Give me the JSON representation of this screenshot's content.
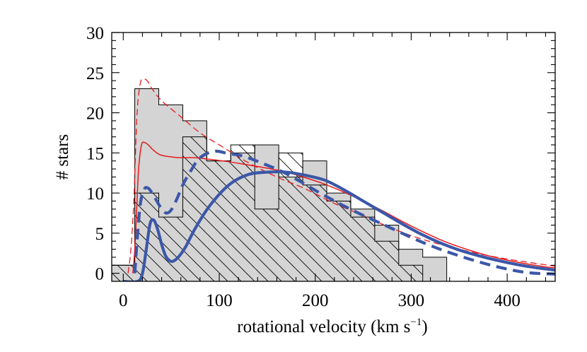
{
  "chart_data": {
    "type": "bar",
    "xlabel_main": "rotational velocity (km s",
    "xlabel_sup": "−1",
    "xlabel_close": ")",
    "ylabel": "# stars",
    "xlim": [
      -12,
      450
    ],
    "ylim": [
      -1,
      30
    ],
    "xticks": [
      0,
      100,
      200,
      300,
      400
    ],
    "yticks": [
      0,
      5,
      10,
      15,
      20,
      25,
      30
    ],
    "grid": false,
    "histogram_shaded": {
      "name": "",
      "bin_edges": [
        -12,
        12,
        37,
        62,
        87,
        112,
        137,
        162,
        187,
        212,
        237,
        262,
        287,
        312,
        337
      ],
      "counts": [
        1,
        23,
        21,
        19,
        14,
        15,
        16,
        12,
        14,
        10,
        8,
        6,
        3,
        2
      ]
    },
    "histogram_hatched": {
      "name": "",
      "bin_edges": [
        -12,
        12,
        37,
        62,
        87,
        112,
        137,
        162,
        187,
        212,
        237,
        262,
        287,
        312,
        337
      ],
      "counts": [
        1,
        10,
        7,
        17,
        14,
        16,
        8,
        15,
        11,
        9,
        7,
        4,
        1,
        0
      ]
    },
    "series": [
      {
        "name": "",
        "style": "thin-solid",
        "color": "#e8191c",
        "x": [
          10,
          12,
          14,
          16,
          19,
          22,
          26,
          30,
          35,
          40,
          50,
          60,
          75,
          90,
          110,
          130,
          150,
          170,
          190,
          210,
          230,
          250,
          270,
          290,
          310,
          330,
          350,
          380,
          410,
          440,
          450
        ],
        "y": [
          0,
          3,
          8,
          13,
          16,
          16.3,
          16,
          15.5,
          15,
          14.7,
          14.5,
          14.4,
          14.4,
          14.2,
          13.9,
          13.5,
          13.1,
          12.6,
          11.9,
          11.1,
          10.1,
          9.0,
          7.8,
          6.5,
          5.3,
          4.2,
          3.3,
          2.2,
          1.4,
          0.8,
          0.7
        ]
      },
      {
        "name": "",
        "style": "thin-dashed",
        "color": "#e8191c",
        "x": [
          5,
          8,
          11,
          13,
          15,
          18,
          21,
          25,
          30,
          40,
          60,
          80,
          100,
          130,
          160,
          190,
          220,
          250,
          280,
          310,
          340,
          380,
          420,
          450
        ],
        "y": [
          0,
          3,
          9,
          16,
          21,
          23.8,
          24.2,
          24,
          23,
          21.5,
          19.5,
          17.5,
          16,
          13.8,
          12,
          10.5,
          8.7,
          7.2,
          5.6,
          4.3,
          3.3,
          2.2,
          1.4,
          0.9
        ]
      },
      {
        "name": "",
        "style": "thick-solid",
        "color": "#3b57a8",
        "x": [
          0,
          15,
          20,
          24,
          28,
          32,
          36,
          40,
          44,
          48,
          52,
          58,
          65,
          75,
          90,
          110,
          130,
          150,
          170,
          190,
          210,
          230,
          250,
          270,
          290,
          310,
          330,
          350,
          370,
          390,
          410,
          430,
          450
        ],
        "y": [
          -1,
          -1,
          0,
          3,
          6.2,
          6.6,
          5.4,
          3.6,
          2.2,
          1.6,
          1.5,
          2.1,
          3.3,
          5.6,
          8.4,
          11.0,
          12.3,
          12.6,
          12.6,
          12.2,
          11.6,
          10.4,
          9.0,
          7.6,
          6.2,
          4.9,
          3.8,
          2.9,
          2.2,
          1.6,
          1.1,
          0.7,
          0.4
        ]
      },
      {
        "name": "",
        "style": "thick-dashed",
        "color": "#3b57a8",
        "x": [
          12,
          15,
          18,
          22,
          26,
          30,
          35,
          40,
          45,
          50,
          56,
          62,
          70,
          80,
          95,
          110,
          125,
          145,
          165,
          185,
          205,
          225,
          245,
          265,
          285,
          305,
          330,
          360,
          390,
          420,
          450
        ],
        "y": [
          0,
          5,
          8.8,
          10.5,
          10.6,
          10,
          9,
          8,
          7.5,
          7.9,
          9.3,
          11,
          12.7,
          14.4,
          15.2,
          14.9,
          14.6,
          13.7,
          12.7,
          11.4,
          10,
          8.7,
          7.5,
          6.4,
          5.3,
          4.2,
          3.0,
          1.8,
          0.8,
          0.1,
          -0.1
        ]
      }
    ]
  }
}
